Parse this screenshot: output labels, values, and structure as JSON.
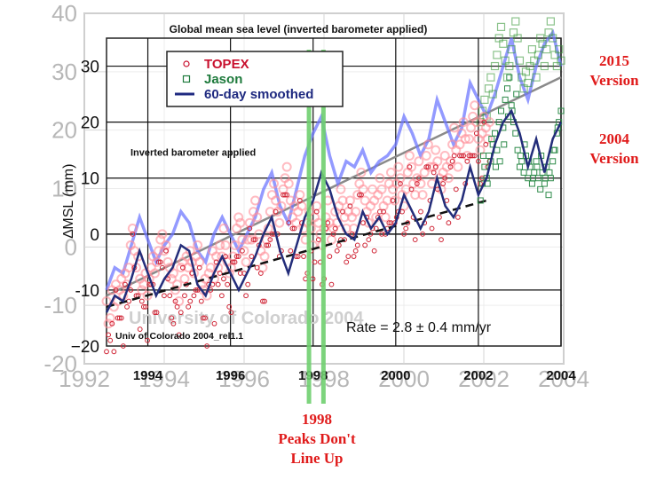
{
  "chart_data": {
    "type": "line",
    "title": "Global mean sea level (inverted barometer applied)",
    "ylabel": "∆MSL (mm)",
    "xlabel": "",
    "xlim": [
      1993,
      2004
    ],
    "ylim": [
      -20,
      35
    ],
    "grid": true,
    "legend_position": "top-left",
    "in_plot_note": "Inverted barometer applied",
    "rate_text": "Rate = 2.8 ± 0.4 mm/yr",
    "credit": "Univ of Colorado 2004_rel1.1",
    "watermark": "University of Colorado 2004",
    "x_ticks": [
      1994,
      1996,
      1998,
      2000,
      2002,
      2004
    ],
    "y_ticks": [
      -10,
      0,
      10,
      20,
      30
    ],
    "legend": [
      {
        "label": "TOPEX",
        "marker": "circle",
        "color": "#c8102e"
      },
      {
        "label": "Jason",
        "marker": "square",
        "color": "#1e7a3c"
      },
      {
        "label": "60-day smoothed",
        "marker": "line",
        "color": "#1f2a80"
      }
    ],
    "series_2004_smoothed": {
      "color": "#232d7a",
      "x": [
        1993.0,
        1993.2,
        1993.4,
        1993.6,
        1993.8,
        1994.0,
        1994.2,
        1994.4,
        1994.6,
        1994.8,
        1995.0,
        1995.2,
        1995.4,
        1995.6,
        1995.8,
        1996.0,
        1996.2,
        1996.4,
        1996.6,
        1996.8,
        1997.0,
        1997.2,
        1997.4,
        1997.6,
        1997.8,
        1998.0,
        1998.2,
        1998.4,
        1998.6,
        1998.8,
        1999.0,
        1999.2,
        1999.4,
        1999.6,
        1999.8,
        2000.0,
        2000.2,
        2000.4,
        2000.6,
        2000.8,
        2001.0,
        2001.2,
        2001.4,
        2001.6,
        2001.8,
        2002.0,
        2002.2,
        2002.4,
        2002.6,
        2002.8,
        2003.0,
        2003.2,
        2003.4,
        2003.6,
        2003.8,
        2004.0
      ],
      "y": [
        -14,
        -11,
        -12,
        -8,
        -3,
        -7,
        -11,
        -8,
        -6,
        -2,
        -3,
        -9,
        -11,
        -7,
        -4,
        -7,
        -10,
        -7,
        -4,
        0,
        3,
        -3,
        -7,
        -2,
        3,
        6,
        11,
        8,
        3,
        0,
        -1,
        4,
        1,
        3,
        0,
        2,
        7,
        4,
        1,
        4,
        10,
        5,
        3,
        6,
        12,
        7,
        10,
        16,
        20,
        22,
        18,
        12,
        17,
        11,
        17,
        20
      ]
    },
    "series_2015_smoothed": {
      "color": "#6f78ff",
      "x": [
        1993.0,
        1993.2,
        1993.4,
        1993.6,
        1993.8,
        1994.0,
        1994.2,
        1994.4,
        1994.6,
        1994.8,
        1995.0,
        1995.2,
        1995.4,
        1995.6,
        1995.8,
        1996.0,
        1996.2,
        1996.4,
        1996.6,
        1996.8,
        1997.0,
        1997.2,
        1997.4,
        1997.6,
        1997.8,
        1998.0,
        1998.2,
        1998.4,
        1998.6,
        1998.8,
        1999.0,
        1999.2,
        1999.4,
        1999.6,
        1999.8,
        2000.0,
        2000.2,
        2000.4,
        2000.6,
        2000.8,
        2001.0,
        2001.2,
        2001.4,
        2001.6,
        2001.8,
        2002.0,
        2002.2,
        2002.4,
        2002.6,
        2002.8,
        2003.0,
        2003.2,
        2003.4,
        2003.6,
        2003.8,
        2004.0
      ],
      "y": [
        -10,
        -6,
        -7,
        -2,
        3,
        -1,
        -5,
        -2,
        0,
        4,
        2,
        -3,
        -5,
        0,
        3,
        0,
        -3,
        0,
        3,
        8,
        11,
        5,
        2,
        8,
        14,
        18,
        21,
        14,
        9,
        13,
        12,
        15,
        11,
        13,
        14,
        16,
        21,
        18,
        14,
        17,
        24,
        20,
        16,
        19,
        27,
        24,
        21,
        25,
        30,
        35,
        28,
        24,
        30,
        34,
        36,
        30
      ]
    },
    "topex_points": {
      "color": "#cf2233",
      "x_start": 1993.0,
      "x_step": 0.045,
      "y": [
        -12,
        -16,
        -15,
        -10,
        -13,
        -9,
        -12,
        -10,
        -8,
        -11,
        -7,
        -9,
        -6,
        -2,
        1,
        -3,
        -6,
        -4,
        -8,
        -10,
        -9,
        -7,
        -11,
        -8,
        -6,
        -4,
        -7,
        -5,
        -3,
        -1,
        0,
        -3,
        -2,
        -5,
        -6,
        -8,
        -7,
        -10,
        -9,
        -12,
        -6,
        -5,
        -8,
        -4,
        -6,
        -3,
        -5,
        -7,
        -4,
        -2,
        -5,
        -9,
        -10,
        -8,
        -11,
        -7,
        -6,
        -3,
        -8,
        -4,
        -6,
        -2,
        -4,
        1,
        -2,
        -5,
        -7,
        -6,
        -4,
        -2,
        1,
        3,
        2,
        -1,
        -3,
        -5,
        -1,
        2,
        -1,
        4,
        6,
        3,
        0,
        -3,
        -6,
        -4,
        -1,
        1,
        4,
        7,
        9,
        6,
        4,
        2,
        5,
        8,
        10,
        12,
        9,
        6,
        3,
        5,
        2,
        4,
        7,
        5,
        1,
        -1,
        2,
        4,
        1,
        -2,
        3,
        5,
        2,
        0,
        -2,
        1,
        3,
        6,
        2,
        -1,
        1,
        4,
        2,
        5,
        8,
        6,
        3,
        1,
        4,
        6,
        3,
        1,
        4,
        7,
        9,
        11,
        8,
        6,
        4,
        2,
        5,
        8,
        6,
        3,
        7,
        10,
        8,
        5,
        3,
        6,
        9,
        11,
        8,
        6,
        9,
        12,
        10,
        7,
        5,
        8,
        11,
        14,
        12,
        9,
        7,
        10,
        13,
        9,
        7,
        11,
        14,
        16,
        12,
        9,
        12,
        15,
        13,
        10,
        8,
        11,
        14,
        12,
        10,
        13,
        16,
        19,
        15,
        12,
        16,
        18,
        20,
        17,
        14,
        17,
        19,
        21,
        23,
        20,
        17,
        15,
        18,
        21,
        19,
        17,
        20,
        23,
        25,
        21,
        18,
        14,
        16,
        19,
        17
      ]
    },
    "jason_points": {
      "color": "#2e8b4a",
      "x": [
        2002.05,
        2002.1,
        2002.15,
        2002.2,
        2002.25,
        2002.3,
        2002.35,
        2002.4,
        2002.45,
        2002.5,
        2002.55,
        2002.6,
        2002.65,
        2002.7,
        2002.75,
        2002.8,
        2002.85,
        2002.9,
        2002.95,
        2003.0,
        2003.05,
        2003.1,
        2003.15,
        2003.2,
        2003.25,
        2003.3,
        2003.35,
        2003.4,
        2003.45,
        2003.5,
        2003.55,
        2003.6,
        2003.65,
        2003.7,
        2003.75,
        2003.8,
        2003.85,
        2003.9,
        2003.95,
        2004.0,
        2002.12,
        2002.32,
        2002.52,
        2002.72,
        2002.92,
        2003.12,
        2003.32,
        2003.52,
        2003.72,
        2003.92,
        2002.22,
        2002.42,
        2002.62,
        2002.82,
        2003.02,
        2003.22,
        2003.42,
        2003.62,
        2003.82
      ],
      "y": [
        6,
        9,
        12,
        10,
        14,
        13,
        16,
        18,
        15,
        20,
        22,
        19,
        24,
        26,
        28,
        23,
        20,
        18,
        15,
        12,
        13,
        11,
        14,
        10,
        12,
        9,
        11,
        13,
        10,
        8,
        11,
        9,
        12,
        7,
        10,
        13,
        15,
        18,
        20,
        22,
        14,
        17,
        13,
        21,
        25,
        16,
        10,
        14,
        11,
        19,
        9,
        12,
        16,
        22,
        14,
        13,
        12,
        10,
        15
      ]
    },
    "jason_2015_points": {
      "color": "#3c9a3c",
      "x": [
        2002.05,
        2002.1,
        2002.15,
        2002.2,
        2002.25,
        2002.3,
        2002.35,
        2002.4,
        2002.45,
        2002.5,
        2002.55,
        2002.6,
        2002.65,
        2002.7,
        2002.75,
        2002.8,
        2002.85,
        2002.9,
        2002.95,
        2003.0,
        2003.05,
        2003.1,
        2003.15,
        2003.2,
        2003.25,
        2003.3,
        2003.35,
        2003.4,
        2003.45,
        2003.5,
        2003.55,
        2003.6,
        2003.65,
        2003.7,
        2003.75,
        2003.8,
        2003.85,
        2003.9,
        2003.95,
        2004.0
      ],
      "y": [
        20,
        22,
        24,
        21,
        26,
        28,
        25,
        30,
        32,
        35,
        37,
        34,
        31,
        28,
        30,
        33,
        36,
        38,
        35,
        31,
        28,
        26,
        29,
        27,
        30,
        33,
        31,
        28,
        32,
        35,
        34,
        30,
        33,
        36,
        38,
        35,
        32,
        30,
        33,
        31
      ]
    },
    "trend_2004": {
      "x": [
        1993,
        2002.2
      ],
      "y": [
        -13,
        6
      ],
      "style": "dashed",
      "color": "#111111"
    },
    "trend_2015": {
      "x": [
        1993,
        2004
      ],
      "y": [
        -11,
        28
      ],
      "style": "solid",
      "color": "#8a8a8a"
    },
    "highlights": [
      {
        "x": 1997.9,
        "color": "#6fcf6f"
      },
      {
        "x": 1998.25,
        "color": "#6fcf6f"
      }
    ],
    "outer_axis": {
      "x_ticks": [
        1992,
        1994,
        1996,
        1998,
        2000,
        2002,
        2004
      ],
      "y_ticks": [
        -20,
        -10,
        0,
        10,
        20,
        30,
        40
      ]
    }
  },
  "annotations": {
    "version_2015": "2015\nVersion",
    "version_2004": "2004\nVersion",
    "peaks_note": "1998\nPeaks Don't\nLine Up"
  }
}
